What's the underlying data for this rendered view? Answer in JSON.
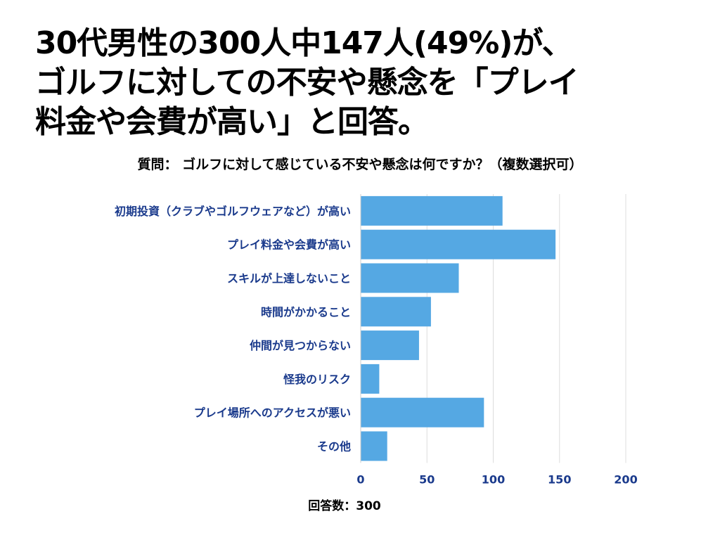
{
  "headline": {
    "line1": "30代男性の300人中147人(49%)が、",
    "line2": " ゴルフに対しての不安や懸念を「プレイ",
    "line3": "料金や会費が高い」と回答。"
  },
  "footer": {
    "respondents": "回答数：300"
  },
  "colors": {
    "bar": "#55a8e3",
    "label": "#1a3a8c",
    "grid": "#dddddd"
  },
  "chart_data": {
    "type": "bar",
    "orientation": "horizontal",
    "title": "質問： ゴルフに対して感じている不安や懸念は何ですか？（複数選択可）",
    "categories": [
      "初期投資（クラブやゴルフウェアなど）が高い",
      "プレイ料金や会費が高い",
      "スキルが上達しないこと",
      "時間がかかること",
      "仲間が見つからない",
      "怪我のリスク",
      "プレイ場所へのアクセスが悪い",
      "その他"
    ],
    "values": [
      107,
      147,
      74,
      53,
      44,
      14,
      93,
      20
    ],
    "xlim": [
      0,
      200
    ],
    "xticks": [
      0,
      50,
      100,
      150,
      200
    ],
    "xlabel": "",
    "ylabel": "",
    "grid": true
  }
}
